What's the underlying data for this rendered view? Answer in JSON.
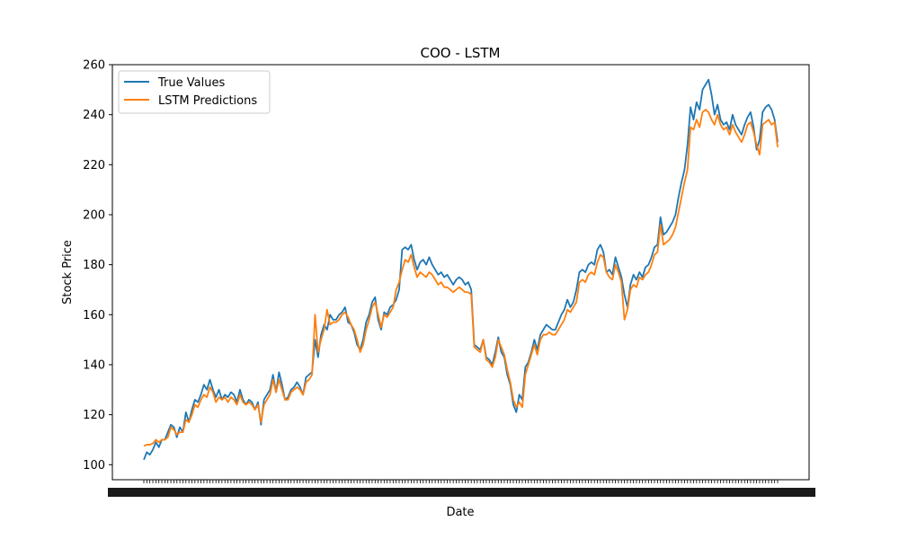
{
  "chart_data": {
    "type": "line",
    "title": "COO - LSTM",
    "xlabel": "Date",
    "ylabel": "Stock Price",
    "ylim": [
      94,
      260
    ],
    "yticks": [
      100,
      120,
      140,
      160,
      180,
      200,
      220,
      240,
      260
    ],
    "grid": false,
    "legend_position": "upper-left",
    "x_tick_labels_note": "dense overlapping date labels",
    "series": [
      {
        "name": "True Values",
        "color": "#1f77b4",
        "values": [
          102,
          105,
          104,
          106,
          109,
          107,
          110,
          110,
          113,
          116,
          115,
          111,
          115,
          113,
          121,
          117,
          122,
          126,
          125,
          128,
          132,
          130,
          134,
          130,
          127,
          130,
          126,
          128,
          127,
          129,
          128,
          125,
          130,
          126,
          124,
          126,
          125,
          122,
          125,
          116,
          126,
          128,
          130,
          136,
          129,
          137,
          132,
          126,
          127,
          130,
          131,
          133,
          131,
          128,
          135,
          136,
          137,
          150,
          143,
          152,
          156,
          154,
          160,
          158,
          158,
          160,
          161,
          163,
          157,
          156,
          153,
          148,
          146,
          150,
          157,
          160,
          165,
          167,
          158,
          154,
          161,
          160,
          163,
          164,
          166,
          170,
          186,
          187,
          186,
          188,
          182,
          178,
          181,
          182,
          180,
          183,
          180,
          178,
          176,
          177,
          175,
          176,
          174,
          172,
          174,
          175,
          174,
          172,
          173,
          170,
          148,
          147,
          146,
          150,
          143,
          142,
          140,
          145,
          151,
          145,
          143,
          136,
          132,
          124,
          121,
          128,
          126,
          139,
          141,
          145,
          150,
          146,
          152,
          154,
          156,
          155,
          154,
          154,
          157,
          160,
          162,
          166,
          163,
          165,
          170,
          177,
          178,
          177,
          180,
          181,
          180,
          186,
          188,
          185,
          177,
          178,
          176,
          183,
          179,
          175,
          168,
          163,
          172,
          176,
          174,
          177,
          175,
          179,
          180,
          183,
          187,
          188,
          199,
          192,
          193,
          195,
          197,
          200,
          207,
          213,
          218,
          228,
          243,
          238,
          245,
          242,
          250,
          252,
          254,
          248,
          240,
          244,
          238,
          236,
          237,
          234,
          240,
          236,
          234,
          232,
          236,
          239,
          241,
          235,
          226,
          230,
          241,
          243,
          244,
          242,
          238,
          229
        ]
      },
      {
        "name": "LSTM Predictions",
        "color": "#ff7f0e",
        "values": [
          107.5,
          108,
          108,
          108.5,
          110,
          109,
          110,
          110,
          111,
          115,
          114,
          112,
          113,
          113,
          118,
          117,
          120,
          124,
          123,
          126,
          128,
          127,
          131,
          129,
          125,
          127,
          126,
          127,
          125,
          127,
          126,
          124,
          128,
          125,
          124,
          125,
          124,
          122,
          124,
          117,
          124,
          126,
          128,
          134,
          129,
          134,
          130,
          126,
          126,
          129,
          130,
          131,
          130,
          128,
          133,
          134,
          136,
          160,
          145,
          150,
          154,
          162,
          156,
          157,
          157,
          158,
          160,
          161,
          159,
          156,
          154,
          150,
          145,
          148,
          154,
          158,
          163,
          165,
          160,
          155,
          160,
          159,
          161,
          163,
          170,
          173,
          178,
          182,
          181,
          184,
          179,
          175,
          177,
          176,
          175,
          177,
          176,
          174,
          172,
          173,
          171,
          171,
          170,
          169,
          170,
          171,
          170,
          169,
          169,
          168,
          147,
          146,
          145,
          150,
          142,
          141,
          139,
          143,
          150,
          147,
          144,
          138,
          133,
          126,
          123,
          125,
          123,
          136,
          140,
          144,
          148,
          144,
          150,
          152,
          152,
          153,
          152,
          152,
          154,
          156,
          158,
          162,
          161,
          163,
          165,
          173,
          174,
          173,
          176,
          177,
          176,
          181,
          184,
          183,
          177,
          175,
          174,
          180,
          177,
          173,
          158,
          162,
          170,
          172,
          171,
          175,
          174,
          176,
          177,
          180,
          184,
          185,
          196,
          188,
          189,
          190,
          192,
          195,
          201,
          207,
          213,
          218,
          235,
          234,
          238,
          235,
          241,
          242,
          241,
          238,
          236,
          240,
          236,
          234,
          235,
          232,
          236,
          233,
          231,
          229,
          232,
          236,
          237,
          233,
          228,
          224,
          236,
          237,
          238,
          236,
          237,
          227
        ]
      }
    ]
  }
}
